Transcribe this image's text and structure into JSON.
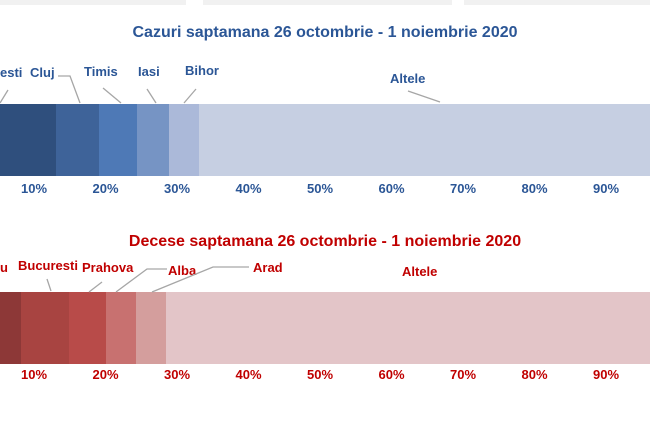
{
  "decor": {
    "background": "#ffffff",
    "top_strip_color": "#f1f1f1",
    "leader_line_color": "#a6a6a6"
  },
  "chart_data": [
    {
      "type": "bar",
      "subtype": "stacked-100-horizontal",
      "title": "Cazuri saptamana 26 octombrie - 1 noiembrie 2020",
      "text_color": "#2b5696",
      "categories": [
        "esti",
        "Cluj",
        "Timis",
        "Iasi",
        "Bihor",
        "Altele"
      ],
      "values": [
        13.2,
        6.0,
        5.3,
        4.5,
        4.2,
        66.8
      ],
      "colors": [
        "#2f4f7d",
        "#3e6399",
        "#4e79b6",
        "#7694c4",
        "#abb9d9",
        "#c6cfe2"
      ],
      "x_axis": {
        "ticks": [
          "10%",
          "20%",
          "30%",
          "40%",
          "50%",
          "60%",
          "70%",
          "80%",
          "90%"
        ],
        "unit": "%",
        "tick_interval_pct": 10
      }
    },
    {
      "type": "bar",
      "subtype": "stacked-100-horizontal",
      "title": "Decese saptamana 26 octombrie - 1 noiembrie 2020",
      "text_color": "#c00000",
      "categories": [
        "u",
        "Bucuresti",
        "Prahova",
        "Alba",
        "Arad",
        "Altele"
      ],
      "values": [
        8.2,
        6.7,
        5.3,
        4.1,
        4.3,
        71.4
      ],
      "colors": [
        "#8d3837",
        "#a84441",
        "#b84b49",
        "#c87170",
        "#d49e9d",
        "#e3c5c8"
      ],
      "x_axis": {
        "ticks": [
          "10%",
          "20%",
          "30%",
          "40%",
          "50%",
          "60%",
          "70%",
          "80%",
          "90%"
        ],
        "unit": "%",
        "tick_interval_pct": 10
      }
    }
  ]
}
